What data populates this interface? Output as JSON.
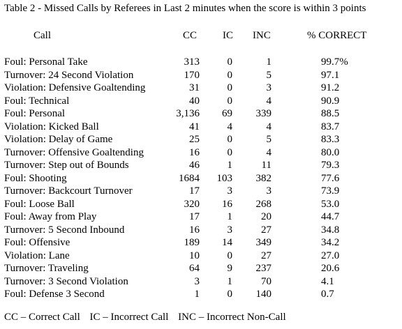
{
  "title": "Table 2  - Missed Calls by Referees in Last 2 minutes when the score is within 3 points",
  "columns": {
    "call": "Call",
    "cc": "CC",
    "ic": "IC",
    "inc": "INC",
    "pct": "% CORRECT"
  },
  "rows": [
    {
      "call": "Foul: Personal Take",
      "cc": "313",
      "ic": "0",
      "inc": "1",
      "pct": "99.7%"
    },
    {
      "call": "Turnover: 24 Second Violation",
      "cc": "170",
      "ic": "0",
      "inc": "5",
      "pct": "97.1"
    },
    {
      "call": "Violation: Defensive Goaltending",
      "cc": "31",
      "ic": "0",
      "inc": "3",
      "pct": "91.2"
    },
    {
      "call": "Foul: Technical",
      "cc": "40",
      "ic": "0",
      "inc": "4",
      "pct": "90.9"
    },
    {
      "call": "Foul: Personal",
      "cc": "3,136",
      "ic": "69",
      "inc": "339",
      "pct": "88.5"
    },
    {
      "call": "Violation: Kicked Ball",
      "cc": "41",
      "ic": "4",
      "inc": "4",
      "pct": "83.7"
    },
    {
      "call": "Violation: Delay of Game",
      "cc": "25",
      "ic": "0",
      "inc": "5",
      "pct": "83.3"
    },
    {
      "call": "Turnover: Offensive Goaltending",
      "cc": "16",
      "ic": "0",
      "inc": "4",
      "pct": "80.0"
    },
    {
      "call": "Turnover: Step out of Bounds",
      "cc": "46",
      "ic": "1",
      "inc": "11",
      "pct": "79.3"
    },
    {
      "call": "Foul: Shooting",
      "cc": "1684",
      "ic": "103",
      "inc": "382",
      "pct": "77.6"
    },
    {
      "call": "Turnover: Backcourt Turnover",
      "cc": "17",
      "ic": "3",
      "inc": "3",
      "pct": "73.9"
    },
    {
      "call": "Foul: Loose Ball",
      "cc": "320",
      "ic": "16",
      "inc": "268",
      "pct": "53.0"
    },
    {
      "call": "Foul: Away from Play",
      "cc": "17",
      "ic": "1",
      "inc": "20",
      "pct": "44.7"
    },
    {
      "call": "Turnover: 5 Second Inbound",
      "cc": "16",
      "ic": "3",
      "inc": "27",
      "pct": "34.8"
    },
    {
      "call": "Foul: Offensive",
      "cc": "189",
      "ic": "14",
      "inc": "349",
      "pct": "34.2"
    },
    {
      "call": "Violation: Lane",
      "cc": "10",
      "ic": "0",
      "inc": "27",
      "pct": "27.0"
    },
    {
      "call": "Turnover: Traveling",
      "cc": "64",
      "ic": "9",
      "inc": "237",
      "pct": "20.6"
    },
    {
      "call": "Turnover: 3 Second Violation",
      "cc": "3",
      "ic": "1",
      "inc": "70",
      "pct": "4.1"
    },
    {
      "call": "Foul: Defense 3 Second",
      "cc": "1",
      "ic": "0",
      "inc": "140",
      "pct": "0.7"
    }
  ],
  "legend": {
    "cc": "CC – Correct Call",
    "ic": "IC – Incorrect Call",
    "inc": "INC – Incorrect Non-Call"
  }
}
